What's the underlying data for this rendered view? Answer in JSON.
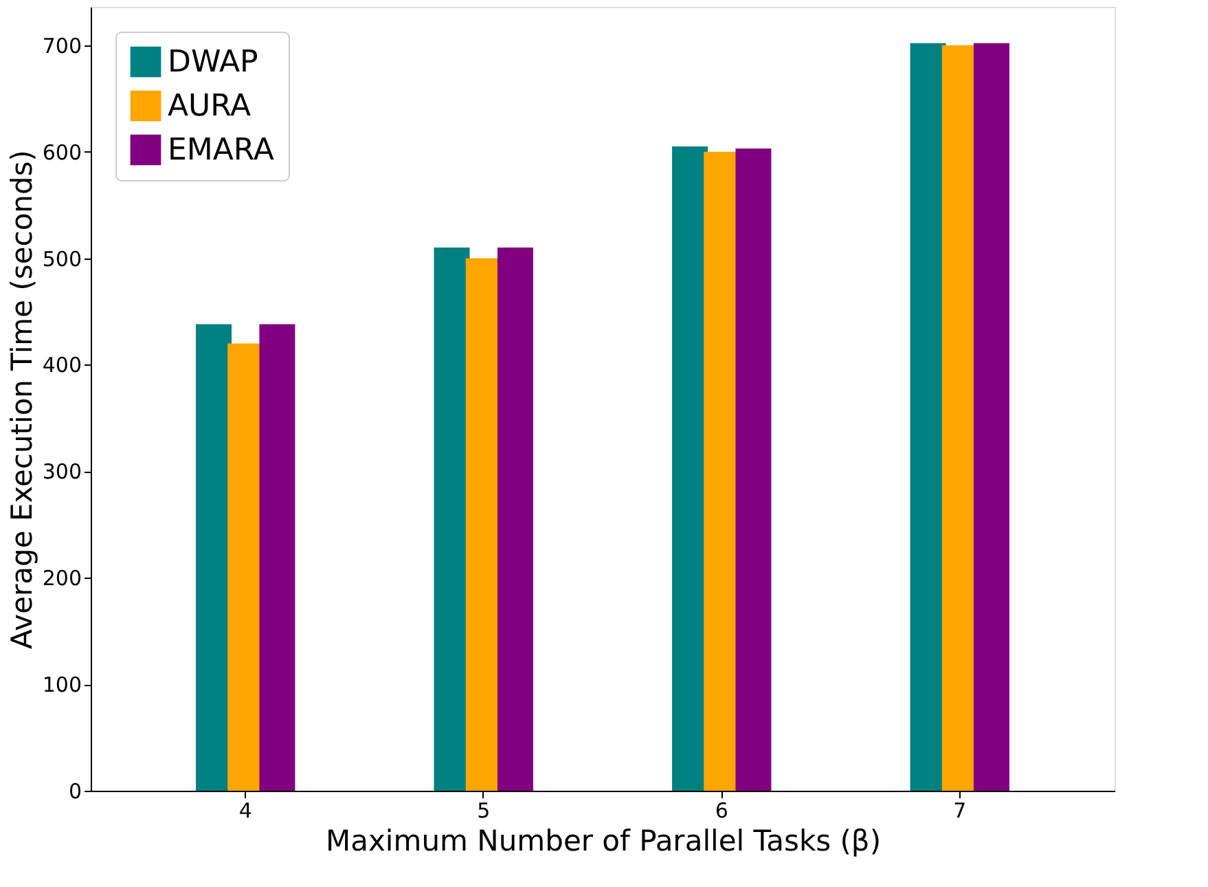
{
  "chart_data": {
    "type": "bar",
    "xlabel": "Maximum Number of Parallel Tasks (β)",
    "ylabel": "Average Execution Time (seconds)",
    "categories": [
      "4",
      "5",
      "6",
      "7"
    ],
    "series": [
      {
        "name": "DWAP",
        "color": "#008080",
        "values": [
          438,
          510,
          605,
          702
        ]
      },
      {
        "name": "AURA",
        "color": "#ffa500",
        "values": [
          420,
          500,
          600,
          700
        ]
      },
      {
        "name": "EMARA",
        "color": "#800080",
        "values": [
          438,
          510,
          603,
          702
        ]
      }
    ],
    "ylim": [
      0,
      736
    ],
    "yticks": [
      0,
      100,
      200,
      300,
      400,
      500,
      600,
      700
    ],
    "grid": false,
    "legend": "top left"
  }
}
